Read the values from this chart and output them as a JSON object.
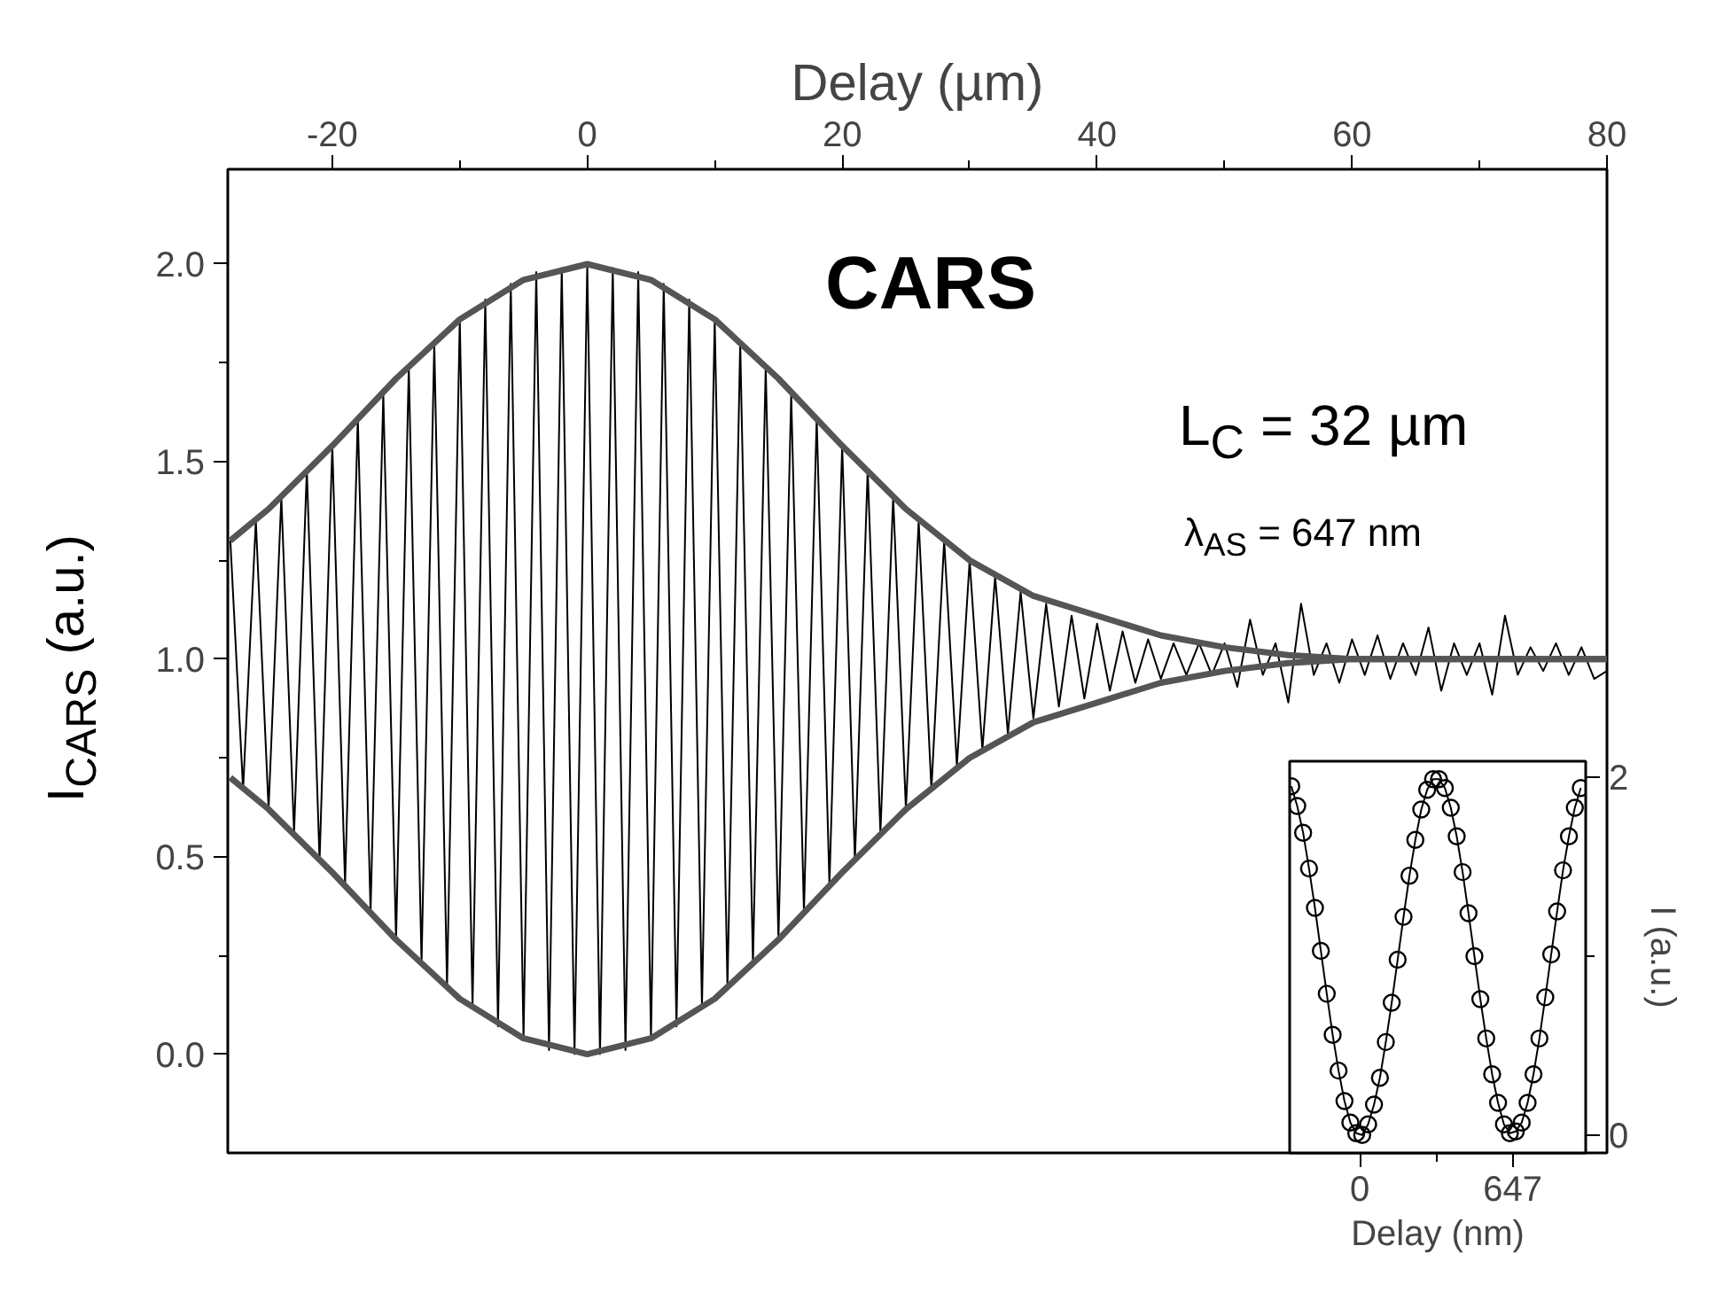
{
  "chart_data": [
    {
      "type": "line",
      "xlabel": "Delay (µm)",
      "ylabel": "I$_{CARS}$ (a.u.)",
      "annotations": [
        "CARS",
        "L$_{C}$ = 32 µm",
        "λ$_{AS}$ = 647 nm"
      ],
      "xlim": [
        -28.2,
        80
      ],
      "ylim": [
        -0.25,
        2.24
      ],
      "xticks": [
        -20,
        {
          "value": -10,
          "label": null
        },
        0,
        {
          "value": 10,
          "label": null
        },
        20,
        {
          "value": 30,
          "label": null
        },
        40,
        {
          "value": 50,
          "label": null
        },
        60,
        {
          "value": 70,
          "label": null
        },
        80
      ],
      "yticks": [
        {
          "value": 0,
          "label": "0.0"
        },
        {
          "value": 0.25,
          "label": null
        },
        {
          "value": 0.5,
          "label": "0.5"
        },
        {
          "value": 0.75,
          "label": null
        },
        {
          "value": 1,
          "label": "1.0"
        },
        {
          "value": 1.25,
          "label": null
        },
        {
          "value": 1.5,
          "label": "1.5"
        },
        {
          "value": 1.75,
          "label": null
        },
        {
          "value": 2,
          "label": "2.0"
        }
      ],
      "grid": false,
      "series": [
        {
          "color": "#000000",
          "x": [
            -28,
            -27,
            -26,
            -25,
            -24,
            -23,
            -22,
            -21,
            -20,
            -19,
            -18,
            -17,
            -16,
            -15,
            -14,
            -13,
            -12,
            -11,
            -10,
            -9,
            -8,
            -7,
            -6,
            -5,
            -4,
            -3,
            -2,
            -1,
            0,
            1,
            2,
            3,
            4,
            5,
            6,
            7,
            8,
            9,
            10,
            11,
            12,
            13,
            14,
            15,
            16,
            17,
            18,
            19,
            20,
            21,
            22,
            23,
            24,
            25,
            26,
            27,
            28,
            29,
            30,
            31,
            32,
            33,
            34,
            35,
            36,
            37,
            38,
            39,
            40,
            41,
            42,
            43,
            44,
            45,
            46,
            47,
            48,
            49,
            50,
            51,
            52,
            53,
            54,
            55,
            56,
            57,
            58,
            59,
            60,
            61,
            62,
            63,
            64,
            65,
            66,
            67,
            68,
            69,
            70,
            71,
            72,
            73,
            74,
            75,
            76,
            77,
            78,
            79,
            80
          ],
          "values": [
            1.3,
            0.67,
            1.35,
            0.62,
            1.41,
            0.56,
            1.48,
            0.49,
            1.54,
            0.43,
            1.61,
            0.36,
            1.67,
            0.29,
            1.74,
            0.23,
            1.8,
            0.17,
            1.86,
            0.12,
            1.91,
            0.07,
            1.95,
            0.04,
            1.98,
            0.01,
            1.99,
            0.0,
            2.0,
            0.0,
            1.99,
            0.01,
            1.98,
            0.04,
            1.95,
            0.07,
            1.91,
            0.12,
            1.86,
            0.17,
            1.8,
            0.23,
            1.74,
            0.29,
            1.67,
            0.36,
            1.61,
            0.43,
            1.54,
            0.49,
            1.48,
            0.56,
            1.41,
            0.62,
            1.35,
            0.67,
            1.3,
            0.73,
            1.25,
            0.77,
            1.21,
            0.81,
            1.17,
            0.85,
            1.14,
            0.88,
            1.11,
            0.9,
            1.09,
            0.92,
            1.07,
            0.94,
            1.05,
            0.95,
            1.04,
            0.96,
            1.04,
            0.96,
            1.04,
            0.93,
            1.1,
            0.96,
            1.04,
            0.89,
            1.14,
            0.96,
            1.04,
            0.94,
            1.05,
            0.96,
            1.06,
            0.95,
            1.04,
            0.96,
            1.08,
            0.92,
            1.04,
            0.96,
            1.04,
            0.91,
            1.11,
            0.96,
            1.03,
            0.97,
            1.04,
            0.96,
            1.03,
            0.95,
            0.97
          ]
        },
        {
          "color": "#555555",
          "x": [
            -28,
            -25,
            -20,
            -15,
            -10,
            -5,
            0,
            5,
            10,
            15,
            20,
            25,
            30,
            35,
            40,
            45,
            50,
            55,
            60,
            70,
            80
          ],
          "values": [
            1.3,
            1.38,
            1.54,
            1.71,
            1.86,
            1.96,
            2.0,
            1.96,
            1.86,
            1.71,
            1.54,
            1.38,
            1.25,
            1.16,
            1.11,
            1.06,
            1.03,
            1.01,
            1.0,
            1.0,
            1.0
          ]
        },
        {
          "color": "#555555",
          "x": [
            -28,
            -25,
            -20,
            -15,
            -10,
            -5,
            0,
            5,
            10,
            15,
            20,
            25,
            30,
            35,
            40,
            45,
            50,
            55,
            60,
            70,
            80
          ],
          "values": [
            0.7,
            0.62,
            0.46,
            0.29,
            0.14,
            0.04,
            0.0,
            0.04,
            0.14,
            0.29,
            0.46,
            0.62,
            0.75,
            0.84,
            0.89,
            0.94,
            0.97,
            0.99,
            1.0,
            1.0,
            1.0
          ]
        }
      ]
    },
    {
      "type": "line",
      "xlabel": "Delay (nm)",
      "ylabel": "I (a.u.)",
      "marker": "circle",
      "xlim": [
        -297,
        956
      ],
      "ylim": [
        -0.1,
        2.09
      ],
      "xticks": [
        0,
        {
          "value": 323.5,
          "label": null
        },
        647
      ],
      "yticks": [
        0,
        {
          "value": 1,
          "label": null
        },
        2
      ],
      "grid": false,
      "series": [
        {
          "color": "#000000",
          "x": [
            -290,
            -265,
            -240,
            -215,
            -190,
            -165,
            -140,
            -115,
            -90,
            -65,
            -40,
            -15,
            10,
            35,
            60,
            85,
            110,
            135,
            160,
            185,
            210,
            235,
            260,
            285,
            310,
            335,
            360,
            385,
            410,
            435,
            460,
            485,
            510,
            535,
            560,
            585,
            610,
            635,
            660,
            685,
            710,
            735,
            760,
            785,
            810,
            835,
            860,
            885,
            910,
            935
          ],
          "values": [
            1.95,
            1.84,
            1.69,
            1.49,
            1.27,
            1.03,
            0.79,
            0.56,
            0.36,
            0.19,
            0.07,
            0.01,
            0.0,
            0.06,
            0.17,
            0.32,
            0.52,
            0.74,
            0.98,
            1.22,
            1.45,
            1.65,
            1.82,
            1.93,
            1.99,
            1.99,
            1.94,
            1.83,
            1.67,
            1.47,
            1.24,
            1.0,
            0.76,
            0.54,
            0.34,
            0.18,
            0.06,
            0.01,
            0.02,
            0.07,
            0.18,
            0.34,
            0.54,
            0.77,
            1.01,
            1.25,
            1.48,
            1.67,
            1.83,
            1.94
          ]
        }
      ]
    }
  ]
}
